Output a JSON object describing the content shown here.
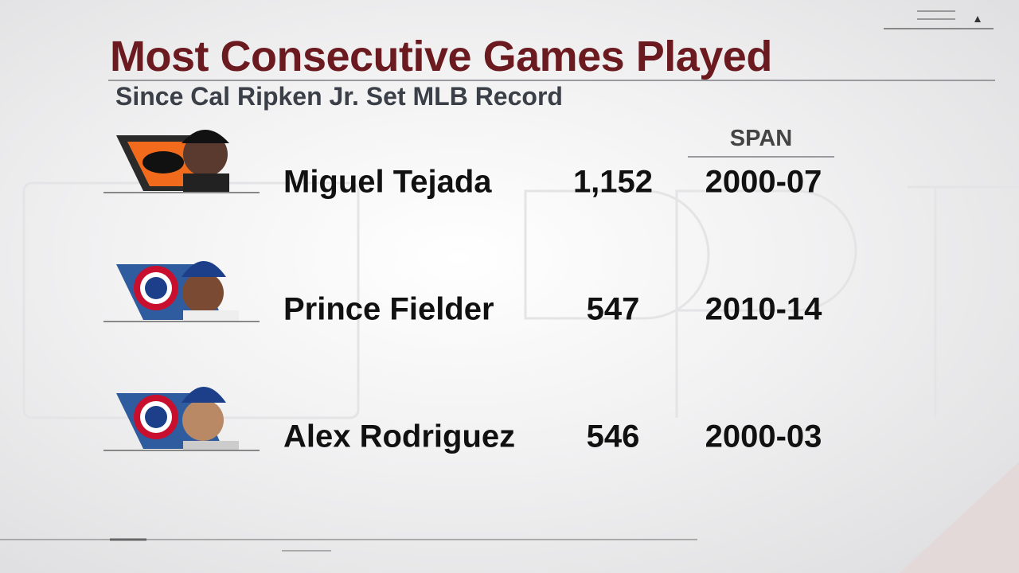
{
  "header": {
    "title": "Most Consecutive Games Played",
    "subtitle": "Since Cal Ripken Jr. Set MLB Record"
  },
  "table": {
    "columns": [
      "SPAN"
    ],
    "rows": [
      {
        "player": "Miguel Tejada",
        "games": "1,152",
        "span": "2000-07"
      },
      {
        "player": "Prince Fielder",
        "games": "547",
        "span": "2010-14"
      },
      {
        "player": "Alex Rodriguez",
        "games": "546",
        "span": "2000-03"
      }
    ]
  }
}
